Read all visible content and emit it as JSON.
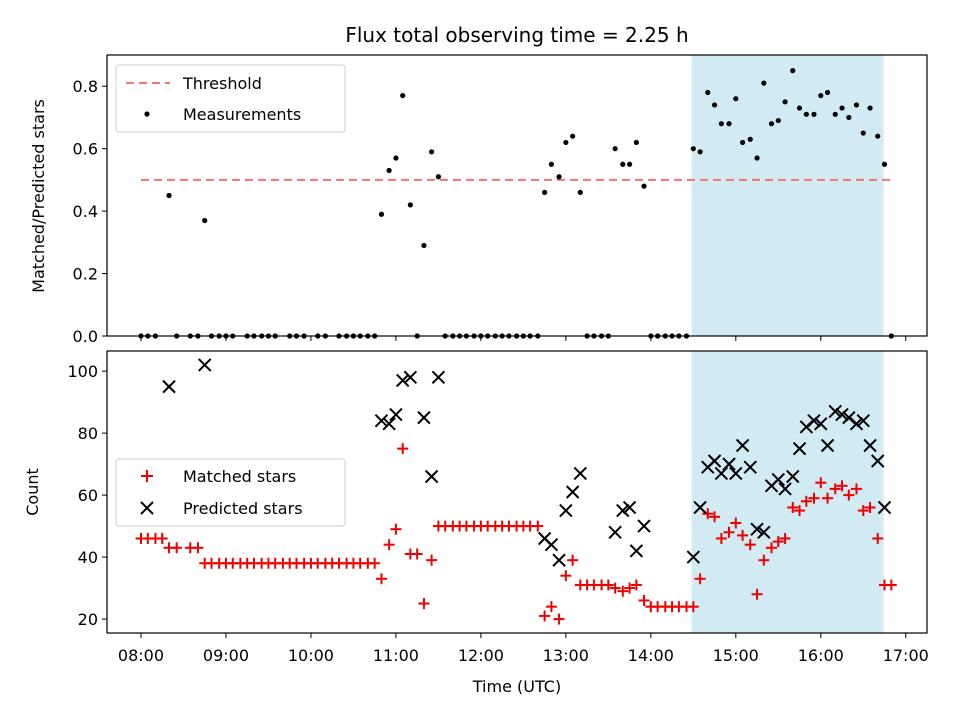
{
  "title": "Flux total observing time = 2.25 h",
  "colors": {
    "threshold": "#f07575",
    "measurement": "#000000",
    "matched": "#ee0000",
    "predicted": "#000000",
    "shade": "#add8e6"
  },
  "chart_data": [
    {
      "type": "scatter",
      "panel": "top",
      "ylabel": "Matched/Predicted stars",
      "xlabel": "",
      "xlim_hours": [
        7.6,
        17.25
      ],
      "ylim": [
        0,
        0.9
      ],
      "yticks": [
        0.0,
        0.2,
        0.4,
        0.6,
        0.8
      ],
      "yticklabels": [
        "0.0",
        "0.2",
        "0.4",
        "0.6",
        "0.8"
      ],
      "legend_placement": "top-left",
      "legend": [
        "Threshold",
        "Measurements"
      ],
      "shaded_range_hours": [
        14.48,
        16.74
      ],
      "threshold": {
        "name": "Threshold",
        "y": 0.5,
        "x_range_hours": [
          8.0,
          16.83
        ]
      },
      "series": [
        {
          "name": "Measurements",
          "points": [
            [
              8.0,
              0
            ],
            [
              8.08,
              0
            ],
            [
              8.17,
              0
            ],
            [
              8.33,
              0.45
            ],
            [
              8.42,
              0
            ],
            [
              8.58,
              0
            ],
            [
              8.67,
              0
            ],
            [
              8.75,
              0.37
            ],
            [
              8.83,
              0
            ],
            [
              8.92,
              0
            ],
            [
              9.0,
              0
            ],
            [
              9.08,
              0
            ],
            [
              9.25,
              0
            ],
            [
              9.33,
              0
            ],
            [
              9.42,
              0
            ],
            [
              9.5,
              0
            ],
            [
              9.58,
              0
            ],
            [
              9.75,
              0
            ],
            [
              9.83,
              0
            ],
            [
              9.92,
              0
            ],
            [
              10.08,
              0
            ],
            [
              10.17,
              0
            ],
            [
              10.33,
              0
            ],
            [
              10.42,
              0
            ],
            [
              10.5,
              0
            ],
            [
              10.58,
              0
            ],
            [
              10.67,
              0
            ],
            [
              10.75,
              0
            ],
            [
              10.83,
              0.39
            ],
            [
              10.92,
              0.53
            ],
            [
              11.0,
              0.57
            ],
            [
              11.08,
              0.77
            ],
            [
              11.17,
              0.42
            ],
            [
              11.25,
              0
            ],
            [
              11.33,
              0.29
            ],
            [
              11.42,
              0.59
            ],
            [
              11.5,
              0.51
            ],
            [
              11.58,
              0
            ],
            [
              11.67,
              0
            ],
            [
              11.75,
              0
            ],
            [
              11.83,
              0
            ],
            [
              11.92,
              0
            ],
            [
              12.0,
              0
            ],
            [
              12.08,
              0
            ],
            [
              12.17,
              0
            ],
            [
              12.25,
              0
            ],
            [
              12.33,
              0
            ],
            [
              12.42,
              0
            ],
            [
              12.5,
              0
            ],
            [
              12.58,
              0
            ],
            [
              12.67,
              0
            ],
            [
              12.75,
              0.46
            ],
            [
              12.83,
              0.55
            ],
            [
              12.92,
              0.51
            ],
            [
              13.0,
              0.62
            ],
            [
              13.08,
              0.64
            ],
            [
              13.17,
              0.46
            ],
            [
              13.25,
              0
            ],
            [
              13.33,
              0
            ],
            [
              13.42,
              0
            ],
            [
              13.5,
              0
            ],
            [
              13.58,
              0.6
            ],
            [
              13.67,
              0.55
            ],
            [
              13.75,
              0.55
            ],
            [
              13.83,
              0.62
            ],
            [
              13.92,
              0.48
            ],
            [
              14.0,
              0
            ],
            [
              14.08,
              0
            ],
            [
              14.17,
              0
            ],
            [
              14.25,
              0
            ],
            [
              14.33,
              0
            ],
            [
              14.42,
              0
            ],
            [
              14.5,
              0.6
            ],
            [
              14.58,
              0.59
            ],
            [
              14.67,
              0.78
            ],
            [
              14.75,
              0.74
            ],
            [
              14.83,
              0.68
            ],
            [
              14.92,
              0.68
            ],
            [
              15.0,
              0.76
            ],
            [
              15.08,
              0.62
            ],
            [
              15.17,
              0.63
            ],
            [
              15.25,
              0.57
            ],
            [
              15.33,
              0.81
            ],
            [
              15.42,
              0.68
            ],
            [
              15.5,
              0.69
            ],
            [
              15.58,
              0.75
            ],
            [
              15.67,
              0.85
            ],
            [
              15.75,
              0.73
            ],
            [
              15.83,
              0.71
            ],
            [
              15.92,
              0.71
            ],
            [
              16.0,
              0.77
            ],
            [
              16.08,
              0.78
            ],
            [
              16.17,
              0.71
            ],
            [
              16.25,
              0.73
            ],
            [
              16.33,
              0.7
            ],
            [
              16.42,
              0.74
            ],
            [
              16.5,
              0.65
            ],
            [
              16.58,
              0.73
            ],
            [
              16.67,
              0.64
            ],
            [
              16.75,
              0.55
            ],
            [
              16.83,
              0
            ]
          ]
        }
      ]
    },
    {
      "type": "scatter",
      "panel": "bottom",
      "ylabel": "Count",
      "xlabel": "Time (UTC)",
      "xlim_hours": [
        7.6,
        17.25
      ],
      "ylim": [
        15.5,
        106.5
      ],
      "yticks": [
        20,
        40,
        60,
        80,
        100
      ],
      "yticklabels": [
        "20",
        "40",
        "60",
        "80",
        "100"
      ],
      "xticks_hours": [
        8,
        9,
        10,
        11,
        12,
        13,
        14,
        15,
        16,
        17
      ],
      "xticklabels": [
        "08:00",
        "09:00",
        "10:00",
        "11:00",
        "12:00",
        "13:00",
        "14:00",
        "15:00",
        "16:00",
        "17:00"
      ],
      "legend_placement": "center-left",
      "legend": [
        "Matched stars",
        "Predicted stars"
      ],
      "shaded_range_hours": [
        14.48,
        16.74
      ],
      "series": [
        {
          "name": "Matched stars",
          "marker": "plus",
          "points": [
            [
              8.0,
              46
            ],
            [
              8.08,
              46
            ],
            [
              8.17,
              46
            ],
            [
              8.25,
              46
            ],
            [
              8.33,
              43
            ],
            [
              8.42,
              43
            ],
            [
              8.58,
              43
            ],
            [
              8.67,
              43
            ],
            [
              8.75,
              38
            ],
            [
              8.83,
              38
            ],
            [
              8.92,
              38
            ],
            [
              9.0,
              38
            ],
            [
              9.08,
              38
            ],
            [
              9.17,
              38
            ],
            [
              9.25,
              38
            ],
            [
              9.33,
              38
            ],
            [
              9.42,
              38
            ],
            [
              9.5,
              38
            ],
            [
              9.58,
              38
            ],
            [
              9.67,
              38
            ],
            [
              9.75,
              38
            ],
            [
              9.83,
              38
            ],
            [
              9.92,
              38
            ],
            [
              10.0,
              38
            ],
            [
              10.08,
              38
            ],
            [
              10.17,
              38
            ],
            [
              10.25,
              38
            ],
            [
              10.33,
              38
            ],
            [
              10.42,
              38
            ],
            [
              10.5,
              38
            ],
            [
              10.58,
              38
            ],
            [
              10.67,
              38
            ],
            [
              10.75,
              38
            ],
            [
              10.83,
              33
            ],
            [
              10.92,
              44
            ],
            [
              11.0,
              49
            ],
            [
              11.08,
              75
            ],
            [
              11.17,
              41
            ],
            [
              11.25,
              41
            ],
            [
              11.33,
              25
            ],
            [
              11.42,
              39
            ],
            [
              11.5,
              50
            ],
            [
              11.58,
              50
            ],
            [
              11.67,
              50
            ],
            [
              11.75,
              50
            ],
            [
              11.83,
              50
            ],
            [
              11.92,
              50
            ],
            [
              12.0,
              50
            ],
            [
              12.08,
              50
            ],
            [
              12.17,
              50
            ],
            [
              12.25,
              50
            ],
            [
              12.33,
              50
            ],
            [
              12.42,
              50
            ],
            [
              12.5,
              50
            ],
            [
              12.58,
              50
            ],
            [
              12.67,
              50
            ],
            [
              12.75,
              21
            ],
            [
              12.83,
              24
            ],
            [
              12.92,
              20
            ],
            [
              13.0,
              34
            ],
            [
              13.08,
              39
            ],
            [
              13.17,
              31
            ],
            [
              13.25,
              31
            ],
            [
              13.33,
              31
            ],
            [
              13.42,
              31
            ],
            [
              13.5,
              31
            ],
            [
              13.58,
              30
            ],
            [
              13.67,
              29
            ],
            [
              13.75,
              30
            ],
            [
              13.83,
              31
            ],
            [
              13.92,
              26
            ],
            [
              14.0,
              24
            ],
            [
              14.08,
              24
            ],
            [
              14.17,
              24
            ],
            [
              14.25,
              24
            ],
            [
              14.33,
              24
            ],
            [
              14.42,
              24
            ],
            [
              14.5,
              24
            ],
            [
              14.58,
              33
            ],
            [
              14.67,
              54
            ],
            [
              14.75,
              53
            ],
            [
              14.83,
              46
            ],
            [
              14.92,
              48
            ],
            [
              15.0,
              51
            ],
            [
              15.08,
              47
            ],
            [
              15.17,
              44
            ],
            [
              15.25,
              28
            ],
            [
              15.33,
              39
            ],
            [
              15.42,
              43
            ],
            [
              15.5,
              45
            ],
            [
              15.58,
              46
            ],
            [
              15.67,
              56
            ],
            [
              15.75,
              55
            ],
            [
              15.83,
              58
            ],
            [
              15.92,
              59
            ],
            [
              16.0,
              64
            ],
            [
              16.08,
              59
            ],
            [
              16.17,
              62
            ],
            [
              16.25,
              63
            ],
            [
              16.33,
              60
            ],
            [
              16.42,
              62
            ],
            [
              16.5,
              55
            ],
            [
              16.58,
              56
            ],
            [
              16.67,
              46
            ],
            [
              16.75,
              31
            ],
            [
              16.83,
              31
            ]
          ]
        },
        {
          "name": "Predicted stars",
          "marker": "x",
          "points": [
            [
              8.33,
              95
            ],
            [
              8.75,
              102
            ],
            [
              10.83,
              84
            ],
            [
              10.92,
              83
            ],
            [
              11.0,
              86
            ],
            [
              11.08,
              97
            ],
            [
              11.17,
              98
            ],
            [
              11.33,
              85
            ],
            [
              11.42,
              66
            ],
            [
              11.5,
              98
            ],
            [
              12.75,
              46
            ],
            [
              12.83,
              44
            ],
            [
              12.92,
              39
            ],
            [
              13.0,
              55
            ],
            [
              13.08,
              61
            ],
            [
              13.17,
              67
            ],
            [
              13.58,
              48
            ],
            [
              13.67,
              55
            ],
            [
              13.75,
              56
            ],
            [
              13.83,
              42
            ],
            [
              13.92,
              50
            ],
            [
              14.5,
              40
            ],
            [
              14.58,
              56
            ],
            [
              14.67,
              69
            ],
            [
              14.75,
              71
            ],
            [
              14.83,
              67
            ],
            [
              14.92,
              70
            ],
            [
              15.0,
              67
            ],
            [
              15.08,
              76
            ],
            [
              15.17,
              69
            ],
            [
              15.25,
              49
            ],
            [
              15.33,
              48
            ],
            [
              15.42,
              63
            ],
            [
              15.5,
              65
            ],
            [
              15.58,
              62
            ],
            [
              15.67,
              66
            ],
            [
              15.75,
              75
            ],
            [
              15.83,
              82
            ],
            [
              15.92,
              84
            ],
            [
              16.0,
              83
            ],
            [
              16.08,
              76
            ],
            [
              16.17,
              87
            ],
            [
              16.25,
              86
            ],
            [
              16.33,
              85
            ],
            [
              16.42,
              83
            ],
            [
              16.5,
              84
            ],
            [
              16.58,
              76
            ],
            [
              16.67,
              71
            ],
            [
              16.75,
              56
            ]
          ]
        }
      ]
    }
  ]
}
